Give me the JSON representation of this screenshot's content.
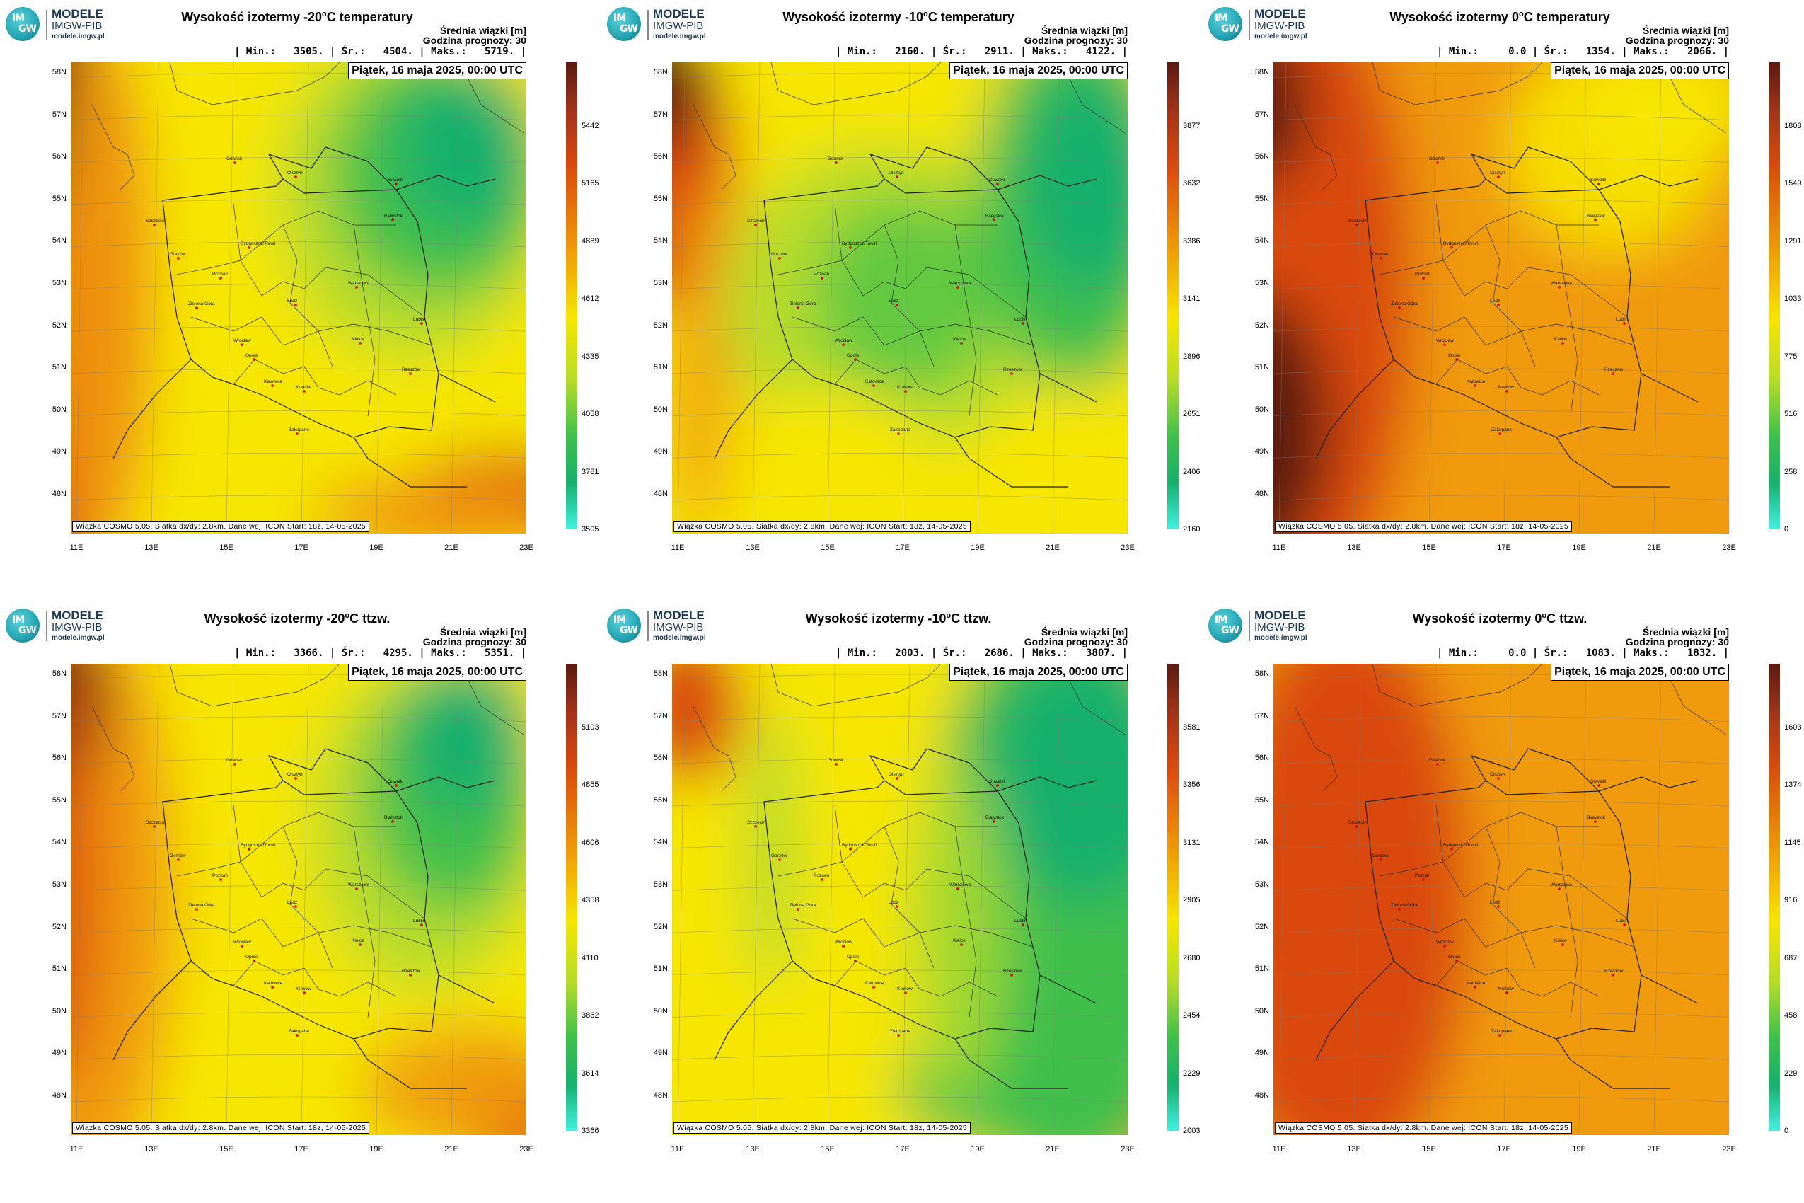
{
  "logo": {
    "line1": "MODELE",
    "line2": "IMGW-PIB",
    "line3": "modele.imgw.pl",
    "glyph_top": "IM",
    "glyph_bottom": "GW"
  },
  "common": {
    "beam": "Średnia wiązki [m]",
    "forecast_hour": "Godzina prognozy: 30",
    "date": "Piątek, 16 maja 2025, 00:00 UTC",
    "credit": "Wiązka COSMO 5.05. Siatka dx/dy: 2.8km. Dane wej: ICON Start: 18z, 14-05-2025",
    "lat_labels": [
      "58N",
      "57N",
      "56N",
      "55N",
      "54N",
      "53N",
      "52N",
      "51N",
      "50N",
      "49N",
      "48N"
    ],
    "lon_labels": [
      "11E",
      "13E",
      "15E",
      "17E",
      "19E",
      "21E",
      "23E"
    ],
    "cities": [
      "Gdańsk",
      "Olsztyn",
      "Suwałki",
      "Białystok",
      "Szczecin",
      "Gorzów",
      "Bydgoszcz/Toruń",
      "Poznań",
      "Warszawa",
      "Zielona Góra",
      "Łódź",
      "Lublin",
      "Wrocław",
      "Kielce",
      "Opole",
      "Rzeszów",
      "Katowice",
      "Kraków",
      "Zakopane"
    ],
    "colors": {
      "brown": "#5a1a10",
      "red": "#d94a0e",
      "orange": "#f09a0a",
      "yellow": "#f6e600",
      "lime": "#b7dc2a",
      "green": "#3fc04c",
      "teal": "#17b06c",
      "cyan": "#40f0e0"
    }
  },
  "panels": [
    {
      "title_pre": "Wysokość izotermy -20",
      "title_post": "C temperatury",
      "sup": "o",
      "stats": "| Min.:   3505. | Śr.:   4504. | Maks.:   5719. |",
      "min": 3505,
      "mean": 4504,
      "max": 5719,
      "colorbar_ticks": [
        "5442",
        "5165",
        "4889",
        "4612",
        "4335",
        "4058",
        "3781",
        "3505"
      ]
    },
    {
      "title_pre": "Wysokość izotermy -10",
      "title_post": "C temperatury",
      "sup": "o",
      "stats": "| Min.:   2160. | Śr.:   2911. | Maks.:   4122. |",
      "min": 2160,
      "mean": 2911,
      "max": 4122,
      "colorbar_ticks": [
        "3877",
        "3632",
        "3386",
        "3141",
        "2896",
        "2651",
        "2406",
        "2160"
      ]
    },
    {
      "title_pre": "Wysokość izotermy 0",
      "title_post": "C temperatury",
      "sup": "o",
      "stats": "| Min.:     0.0 | Śr.:   1354. | Maks.:   2066. |",
      "min": 0.0,
      "mean": 1354,
      "max": 2066,
      "colorbar_ticks": [
        "1808",
        "1549",
        "1291",
        "1033",
        "775",
        "516",
        "258",
        "0"
      ]
    },
    {
      "title_pre": "Wysokość izotermy -20",
      "title_post": "C ttzw.",
      "sup": "o",
      "stats": "| Min.:   3366. | Śr.:   4295. | Maks.:   5351. |",
      "min": 3366,
      "mean": 4295,
      "max": 5351,
      "colorbar_ticks": [
        "5103",
        "4855",
        "4606",
        "4358",
        "4110",
        "3862",
        "3614",
        "3366"
      ]
    },
    {
      "title_pre": "Wysokość izotermy -10",
      "title_post": "C ttzw.",
      "sup": "o",
      "stats": "| Min.:   2003. | Śr.:   2686. | Maks.:   3807. |",
      "min": 2003,
      "mean": 2686,
      "max": 3807,
      "colorbar_ticks": [
        "3581",
        "3356",
        "3131",
        "2905",
        "2680",
        "2454",
        "2229",
        "2003"
      ]
    },
    {
      "title_pre": "Wysokość izotermy 0",
      "title_post": "C ttzw.",
      "sup": "o",
      "stats": "| Min.:     0.0 | Śr.:   1083. | Maks.:   1832. |",
      "min": 0.0,
      "mean": 1083,
      "max": 1832,
      "colorbar_ticks": [
        "1603",
        "1374",
        "1145",
        "916",
        "687",
        "458",
        "229",
        "0"
      ]
    }
  ]
}
